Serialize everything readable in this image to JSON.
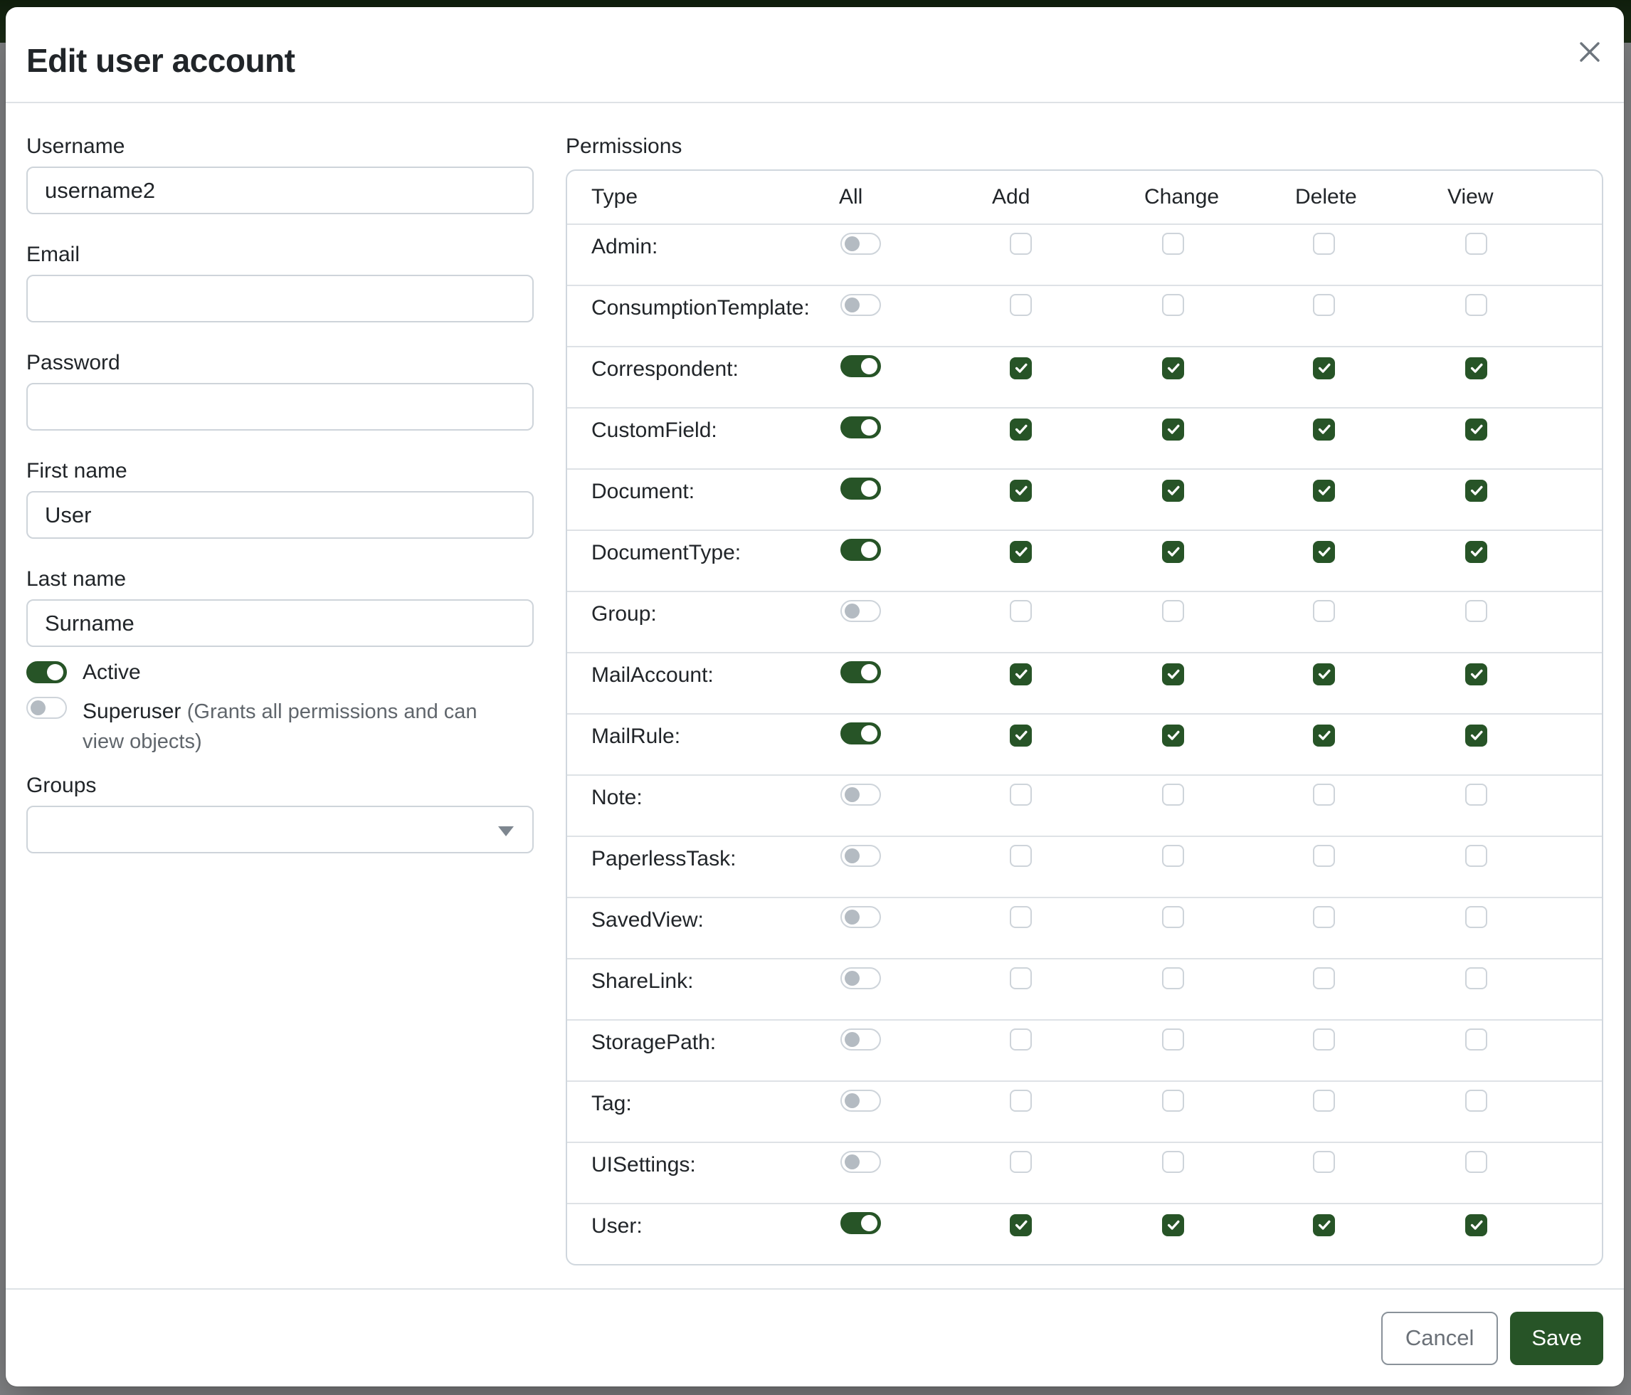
{
  "modal": {
    "title": "Edit user account"
  },
  "form": {
    "username": {
      "label": "Username",
      "value": "username2"
    },
    "email": {
      "label": "Email",
      "value": ""
    },
    "password": {
      "label": "Password",
      "value": ""
    },
    "first_name": {
      "label": "First name",
      "value": "User"
    },
    "last_name": {
      "label": "Last name",
      "value": "Surname"
    },
    "active": {
      "label": "Active",
      "enabled": true
    },
    "superuser": {
      "label": "Superuser",
      "note": "(Grants all permissions and can view objects)",
      "enabled": false
    },
    "groups": {
      "label": "Groups",
      "value": ""
    }
  },
  "permissions": {
    "label": "Permissions",
    "columns": [
      "Type",
      "All",
      "Add",
      "Change",
      "Delete",
      "View"
    ],
    "rows": [
      {
        "type": "Admin:",
        "all": false,
        "add": false,
        "change": false,
        "delete": false,
        "view": false
      },
      {
        "type": "ConsumptionTemplate:",
        "all": false,
        "add": false,
        "change": false,
        "delete": false,
        "view": false
      },
      {
        "type": "Correspondent:",
        "all": true,
        "add": true,
        "change": true,
        "delete": true,
        "view": true
      },
      {
        "type": "CustomField:",
        "all": true,
        "add": true,
        "change": true,
        "delete": true,
        "view": true
      },
      {
        "type": "Document:",
        "all": true,
        "add": true,
        "change": true,
        "delete": true,
        "view": true
      },
      {
        "type": "DocumentType:",
        "all": true,
        "add": true,
        "change": true,
        "delete": true,
        "view": true
      },
      {
        "type": "Group:",
        "all": false,
        "add": false,
        "change": false,
        "delete": false,
        "view": false
      },
      {
        "type": "MailAccount:",
        "all": true,
        "add": true,
        "change": true,
        "delete": true,
        "view": true
      },
      {
        "type": "MailRule:",
        "all": true,
        "add": true,
        "change": true,
        "delete": true,
        "view": true
      },
      {
        "type": "Note:",
        "all": false,
        "add": false,
        "change": false,
        "delete": false,
        "view": false
      },
      {
        "type": "PaperlessTask:",
        "all": false,
        "add": false,
        "change": false,
        "delete": false,
        "view": false
      },
      {
        "type": "SavedView:",
        "all": false,
        "add": false,
        "change": false,
        "delete": false,
        "view": false
      },
      {
        "type": "ShareLink:",
        "all": false,
        "add": false,
        "change": false,
        "delete": false,
        "view": false
      },
      {
        "type": "StoragePath:",
        "all": false,
        "add": false,
        "change": false,
        "delete": false,
        "view": false
      },
      {
        "type": "Tag:",
        "all": false,
        "add": false,
        "change": false,
        "delete": false,
        "view": false
      },
      {
        "type": "UISettings:",
        "all": false,
        "add": false,
        "change": false,
        "delete": false,
        "view": false
      },
      {
        "type": "User:",
        "all": true,
        "add": true,
        "change": true,
        "delete": true,
        "view": true
      }
    ]
  },
  "footer": {
    "cancel_label": "Cancel",
    "save_label": "Save"
  },
  "colors": {
    "primary_green": "#275427",
    "header_green": "#1c2d16",
    "backdrop_gray": "#868789",
    "border_gray": "#ced4da",
    "divider_gray": "#dee2e6",
    "muted_text": "#60666c"
  }
}
